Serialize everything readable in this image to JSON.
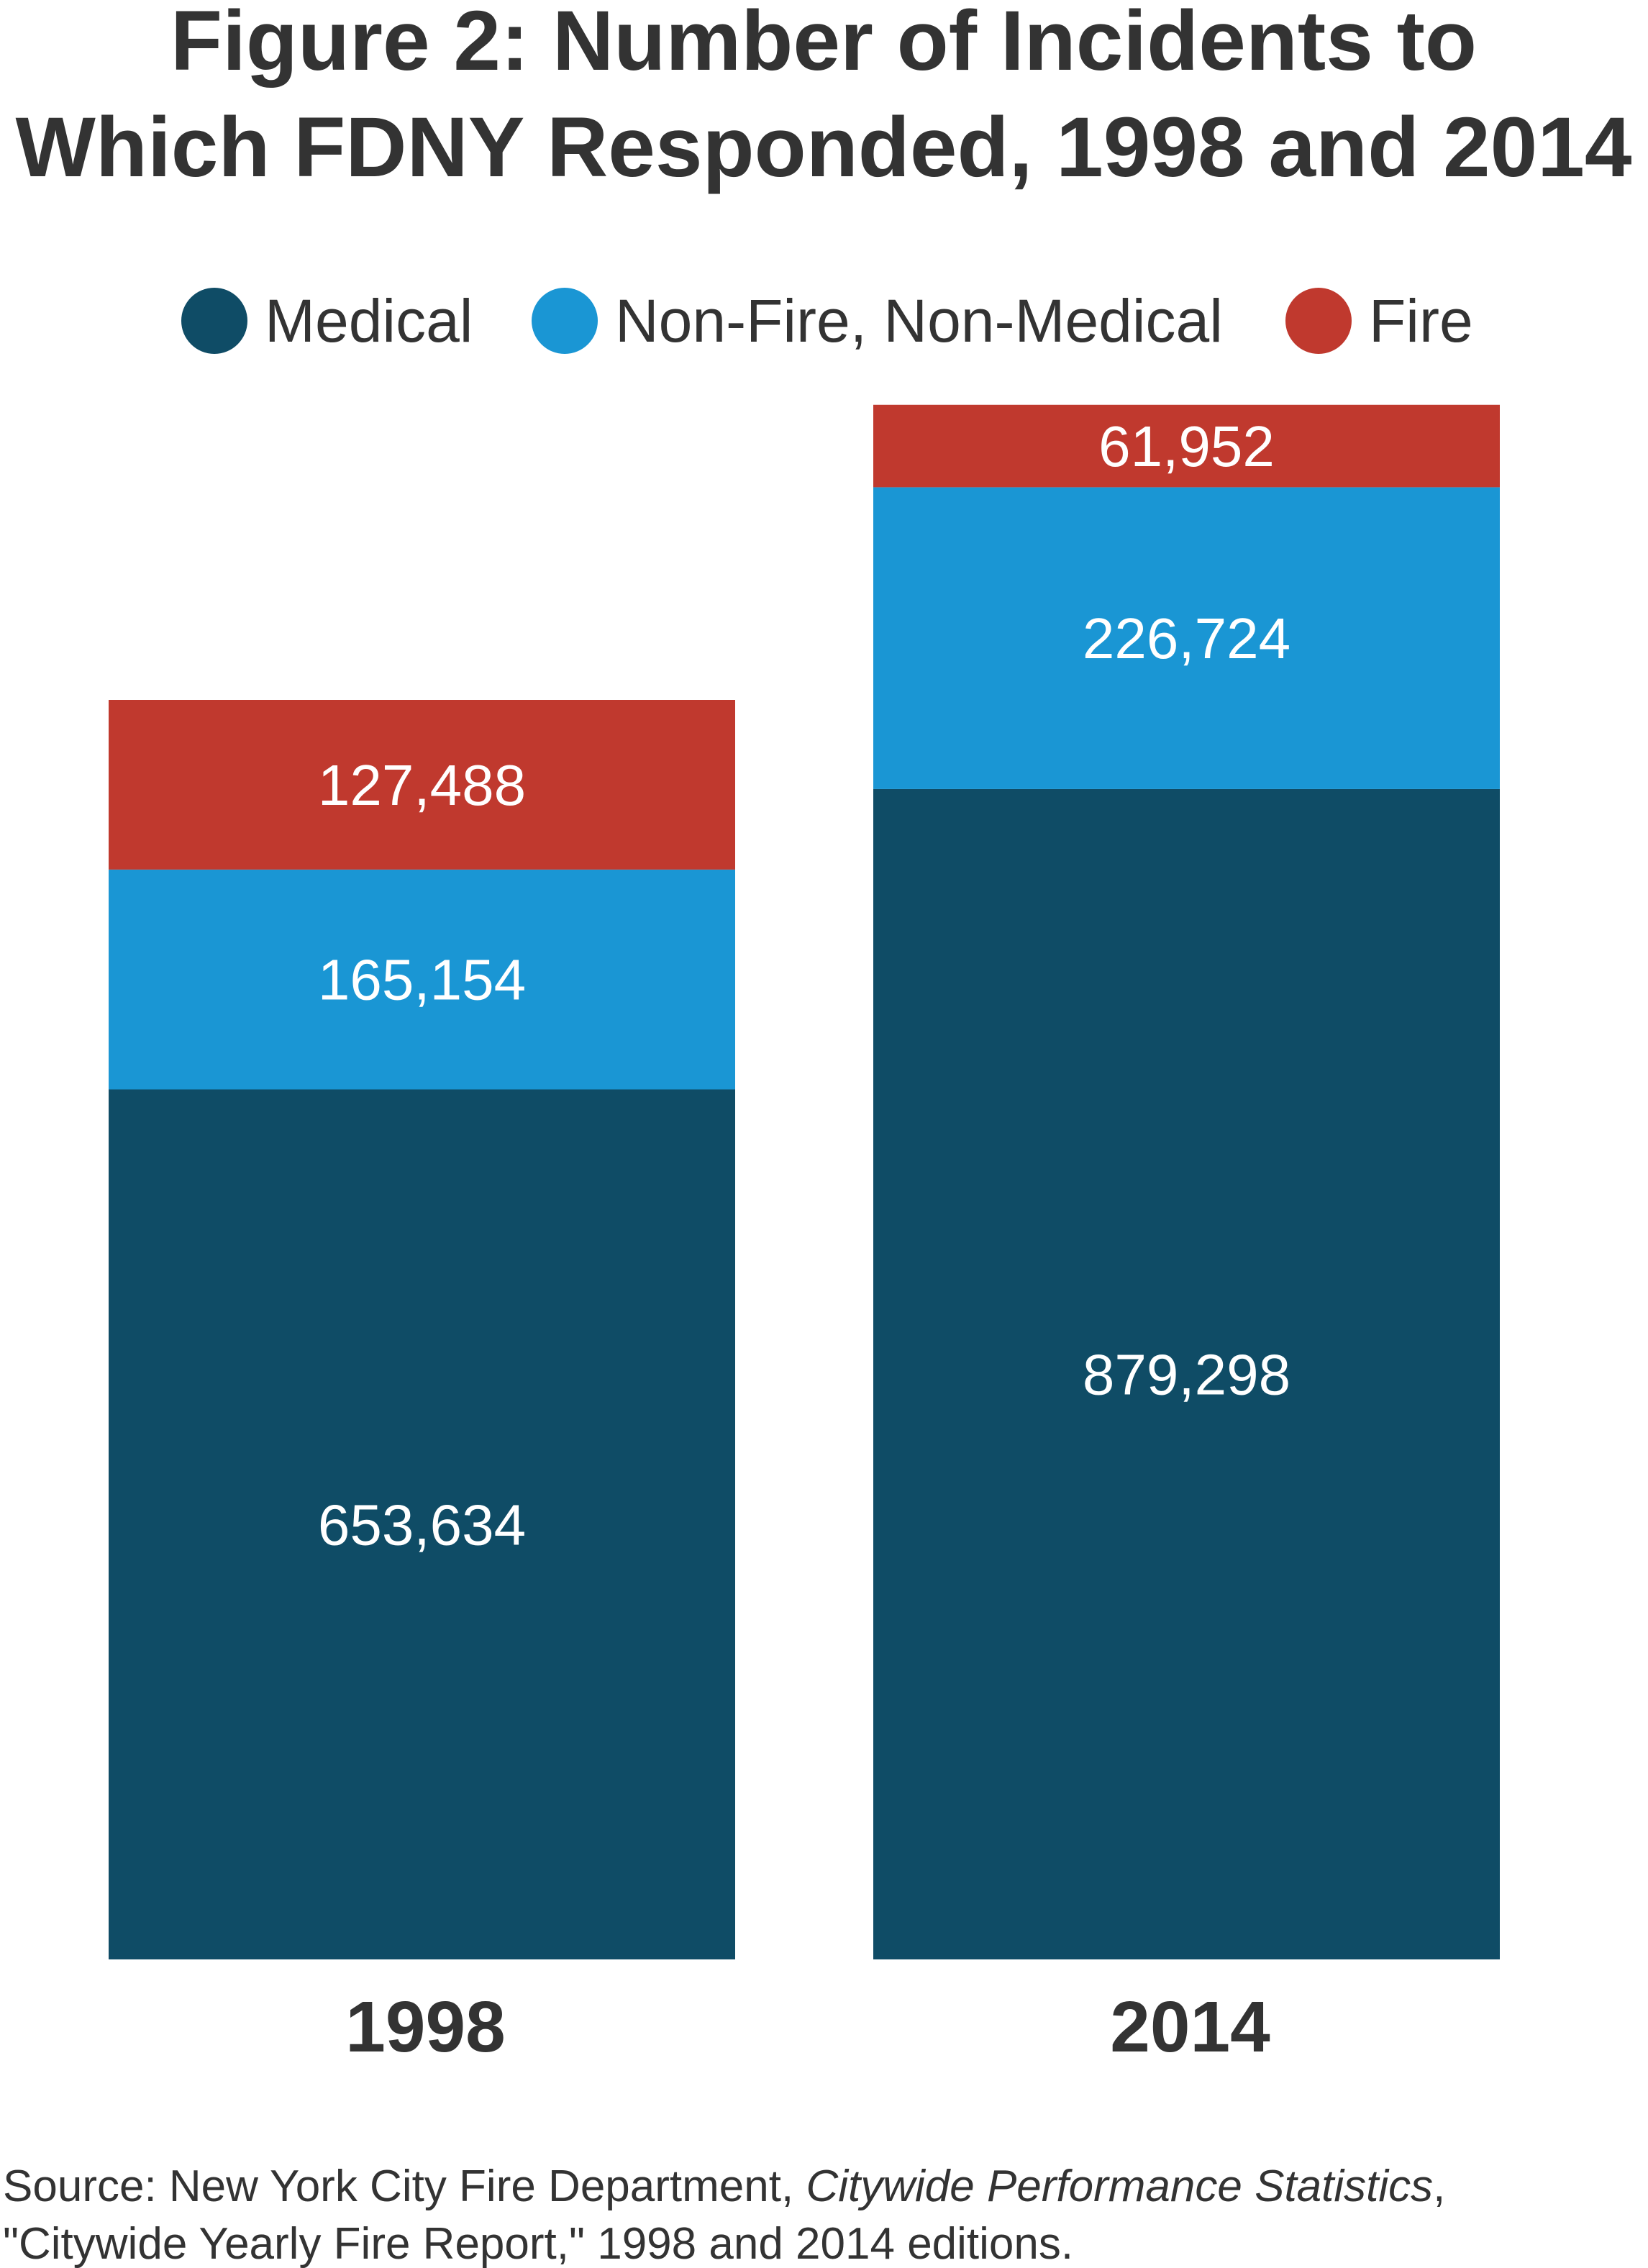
{
  "chart_data": {
    "type": "bar",
    "stacked": true,
    "title_lines": [
      "Figure 2: Number of Incidents to",
      "Which FDNY Responded, 1998 and 2014"
    ],
    "categories": [
      "1998",
      "2014"
    ],
    "series": [
      {
        "name": "Medical",
        "color": "#0f4c66",
        "values": [
          653634,
          879298
        ],
        "labels": [
          "653,634",
          "879,298"
        ]
      },
      {
        "name": "Non-Fire, Non-Medical",
        "color": "#1a96d4",
        "values": [
          165154,
          226724
        ],
        "labels": [
          "165,154",
          "226,724"
        ]
      },
      {
        "name": "Fire",
        "color": "#c0392e",
        "values": [
          127488,
          61952
        ],
        "labels": [
          "127,488",
          "61,952"
        ]
      }
    ],
    "legend_position": "top",
    "grid": false,
    "ylim": [
      0,
      1200000
    ],
    "xlabel": "",
    "ylabel": ""
  },
  "source": {
    "line1_prefix": "Source: New York City Fire Department, ",
    "line1_italic": "Citywide Performance Statistics",
    "line1_suffix": ",",
    "line2": "\"Citywide Yearly Fire Report,\" 1998 and 2014 editions."
  }
}
